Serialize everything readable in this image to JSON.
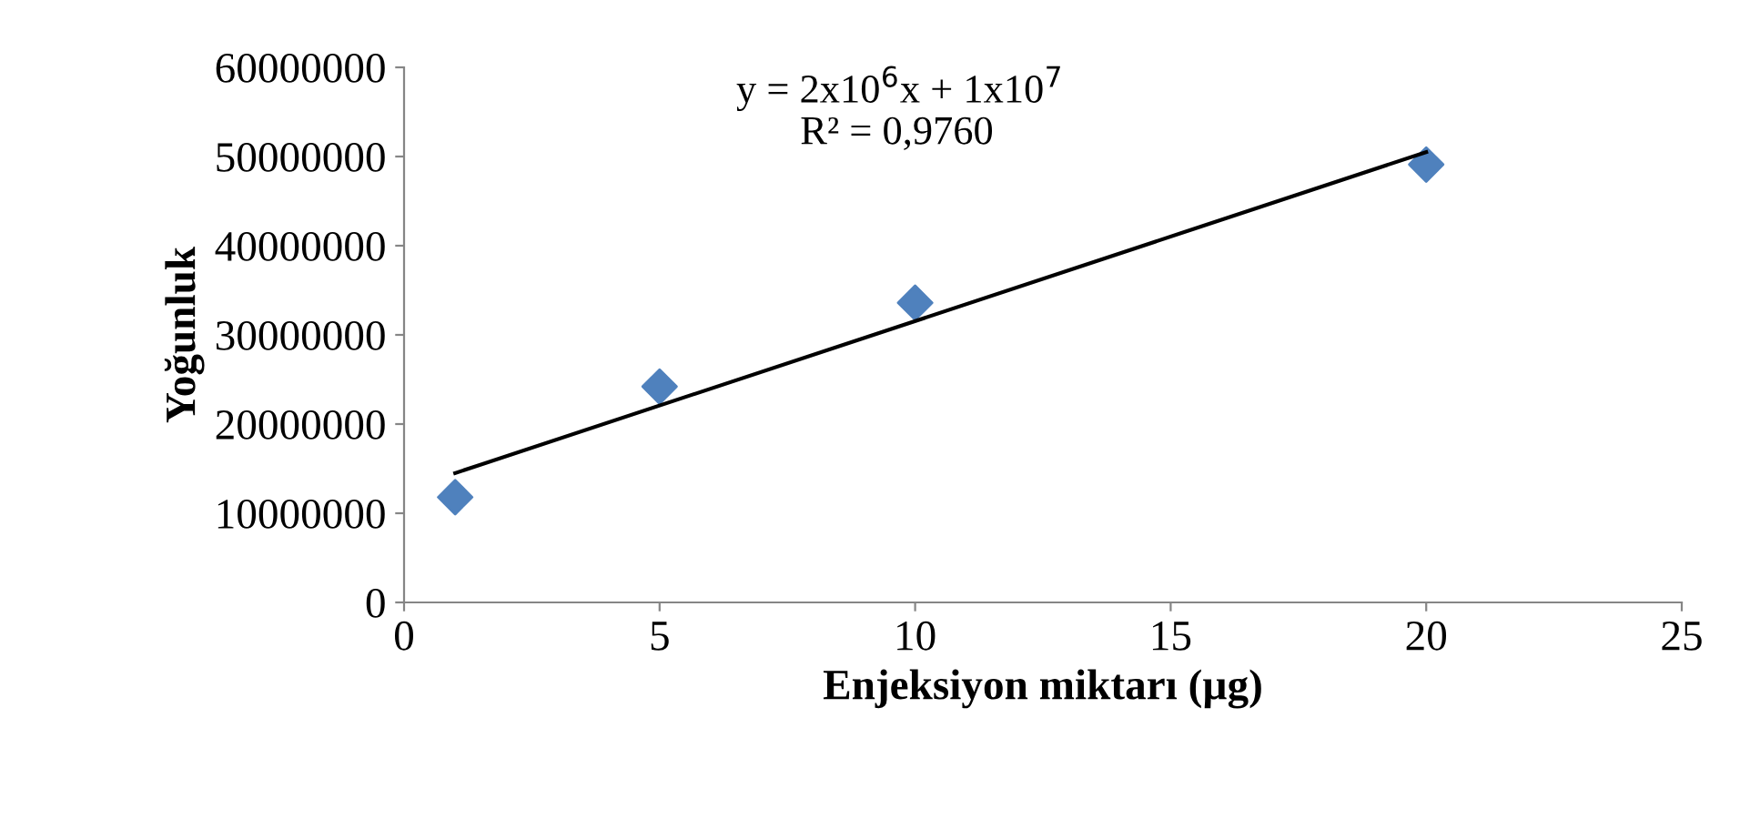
{
  "chart_data": {
    "type": "scatter",
    "xlabel": "Enjeksiyon miktarı (µg)",
    "ylabel": "Yoğunluk",
    "x": [
      1,
      5,
      10,
      20
    ],
    "series": [
      {
        "color": "#4f81bd",
        "marker": "diamond",
        "values": [
          11800000,
          24200000,
          33600000,
          49100000
        ]
      },
      {
        "type": "line",
        "color": "#000000",
        "x": [
          1,
          20
        ],
        "values": [
          14500000,
          50500000
        ]
      }
    ],
    "xlim": [
      0,
      25
    ],
    "xticks": [
      0,
      5,
      10,
      15,
      20,
      25
    ],
    "ylim": [
      0,
      60000000
    ],
    "yticks": [
      0,
      10000000,
      20000000,
      30000000,
      40000000,
      50000000,
      60000000
    ],
    "grid": false,
    "legend": false,
    "annotations": [
      "y = 2x10$^{6}$x + 1x10$^{7}$",
      "R² = 0,9760"
    ]
  }
}
